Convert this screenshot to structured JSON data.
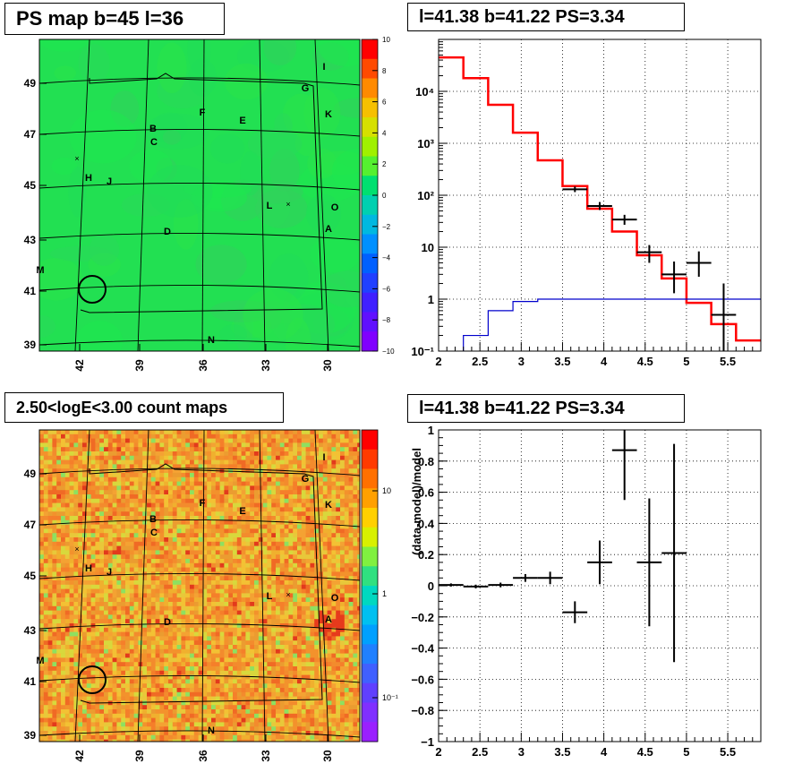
{
  "panels": {
    "ps_map_title": "PS map b=45 l=36",
    "count_map_title": "2.50<logE<3.00 count maps",
    "spectrum_title": "l=41.38 b=41.22 PS=3.34",
    "residual_title": "l=41.38 b=41.22 PS=3.34"
  },
  "maps": {
    "x_ticks": [
      "42",
      "39",
      "36",
      "33",
      "30"
    ],
    "y_ticks": [
      "49",
      "47",
      "45",
      "43",
      "41",
      "39"
    ],
    "ps_colorbar_ticks": [
      "10",
      "8",
      "6",
      "4",
      "2",
      "0",
      "−2",
      "−4",
      "−6",
      "−8",
      "−10"
    ],
    "count_colorbar_ticks": [
      "10",
      "1",
      "10⁻¹"
    ],
    "source_labels": [
      "I",
      "G",
      "K",
      "F",
      "E",
      "B",
      "C",
      "H",
      "J",
      "L",
      "O",
      "A",
      "D",
      "M",
      "N"
    ]
  },
  "chart_data": [
    {
      "type": "line",
      "panel": "spectrum",
      "title": "l=41.38 b=41.22 PS=3.34",
      "xlabel": "",
      "ylabel": "",
      "x_ticks": [
        "2",
        "2.5",
        "3",
        "3.5",
        "4",
        "4.5",
        "5",
        "5.5"
      ],
      "y_ticks": [
        "10⁻¹",
        "1",
        "10",
        "10²",
        "10³",
        "10⁴"
      ],
      "xlim": [
        2.0,
        5.9
      ],
      "ylim": [
        0.1,
        100000
      ],
      "log_y": true,
      "grid": true,
      "series": [
        {
          "kind": "step",
          "color": "#ff0000",
          "edges": [
            2.0,
            2.3,
            2.6,
            2.9,
            3.2,
            3.5,
            3.8,
            4.1,
            4.4,
            4.7,
            5.0,
            5.3,
            5.6,
            5.9
          ],
          "values": [
            45000,
            18000,
            5500,
            1600,
            470,
            150,
            55,
            20,
            7,
            2.5,
            0.85,
            0.33,
            0.16
          ]
        },
        {
          "kind": "step",
          "color": "#0000cc",
          "edges": [
            2.0,
            2.3,
            2.6,
            2.9,
            3.2,
            3.5,
            3.8,
            4.1,
            4.4,
            4.7,
            5.0,
            5.3,
            5.6,
            5.9
          ],
          "values": [
            0.03,
            0.2,
            0.6,
            0.9,
            1.0,
            1.0,
            1.0,
            1.0,
            1.0,
            1.0,
            1.0,
            1.0,
            1.0
          ]
        },
        {
          "kind": "points",
          "color": "#000000",
          "x": [
            3.65,
            3.95,
            4.25,
            4.55,
            4.85,
            5.15,
            5.45
          ],
          "y": [
            130,
            62,
            34,
            8,
            3.0,
            5.0,
            0.5
          ],
          "xerr": 0.15,
          "ylo": [
            115,
            52,
            27,
            5,
            1.3,
            2.7,
            0.1
          ],
          "yhi": [
            147,
            74,
            42,
            11,
            5.3,
            8.3,
            2.0
          ]
        }
      ]
    },
    {
      "type": "scatter",
      "panel": "residual",
      "title": "l=41.38 b=41.22 PS=3.34",
      "xlabel": "",
      "ylabel": "(data-model)/model",
      "x_ticks": [
        "2",
        "2.5",
        "3",
        "3.5",
        "4",
        "4.5",
        "5",
        "5.5"
      ],
      "y_ticks": [
        "1",
        "0.8",
        "0.6",
        "0.4",
        "0.2",
        "0",
        "−0.2",
        "−0.4",
        "−0.6",
        "−0.8",
        "−1"
      ],
      "xlim": [
        2.0,
        5.9
      ],
      "ylim": [
        -1.0,
        1.0
      ],
      "grid": true,
      "series": [
        {
          "kind": "points",
          "color": "#000000",
          "x": [
            2.15,
            2.45,
            2.75,
            3.05,
            3.35,
            3.65,
            3.95,
            4.25,
            4.55,
            4.85
          ],
          "y": [
            0.005,
            -0.005,
            0.005,
            0.05,
            0.05,
            -0.17,
            0.15,
            0.87,
            0.15,
            0.21
          ],
          "xerr": 0.15,
          "yerr": [
            0.01,
            0.012,
            0.015,
            0.025,
            0.04,
            0.07,
            0.14,
            0.32,
            0.41,
            0.7
          ]
        }
      ]
    }
  ]
}
